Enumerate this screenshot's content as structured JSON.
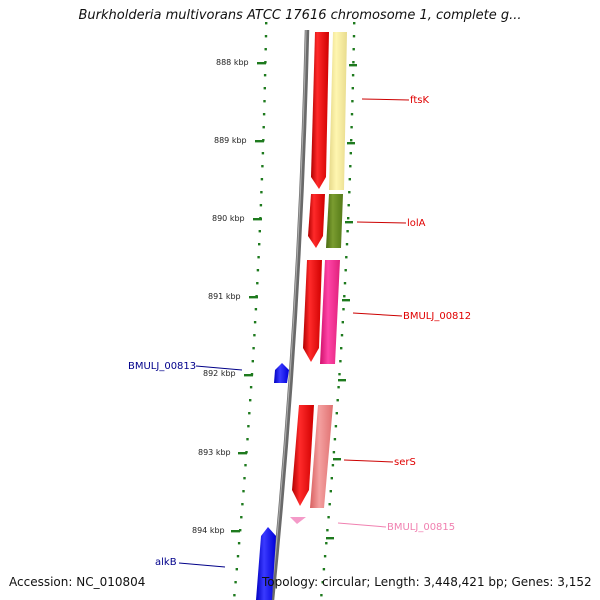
{
  "title": "Burkholderia multivorans ATCC 17616 chromosome 1, complete g...",
  "footer": {
    "accession": "Accession: NC_010804",
    "topology": "Topology: circular; Length: 3,448,421 bp; Genes: 3,152"
  },
  "colors": {
    "backbone": "#888888",
    "tick": "#1e7a1e",
    "forward_cds": "#ff0000",
    "reverse_gene": "#0000ff"
  },
  "scale_labels": [
    "888 kbp",
    "889 kbp",
    "890 kbp",
    "891 kbp",
    "892 kbp",
    "893 kbp",
    "894 kbp"
  ],
  "genes": [
    {
      "name": "ftsK",
      "color": "#e00000"
    },
    {
      "name": "lolA",
      "color": "#e00000"
    },
    {
      "name": "BMULJ_00812",
      "color": "#e00000"
    },
    {
      "name": "BMULJ_00813",
      "color": "#00008b"
    },
    {
      "name": "serS",
      "color": "#e00000"
    },
    {
      "name": "BMULJ_00815",
      "color": "#f080b0"
    },
    {
      "name": "alkB",
      "color": "#00008b"
    }
  ]
}
